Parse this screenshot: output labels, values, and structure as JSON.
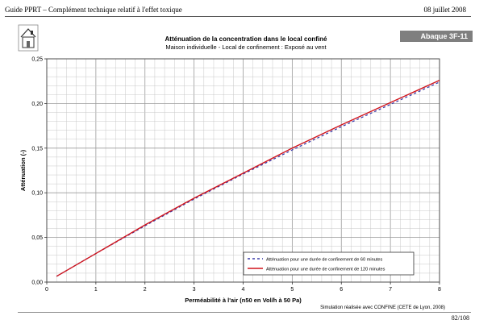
{
  "header": {
    "left": "Guide PPRT – Complément technique relatif à l'effet toxique",
    "right": "08 juillet 2008"
  },
  "badge": "Abaque  3F-11",
  "footer": {
    "credit": "Simulation réalisée avec CONFINE (CETE de Lyon, 2008)",
    "page": "82/108"
  },
  "icons": {
    "logo": "house-logo-icon"
  },
  "chart_data": {
    "type": "line",
    "title": "Atténuation de la concentration dans le local confiné",
    "subtitle": "Maison individuelle - Local de confinement : Exposé au vent",
    "xlabel": "Perméabilité à l'air (n50 en Vol/h à 50 Pa)",
    "ylabel": "Atténuation (-)",
    "xlim": [
      0,
      8
    ],
    "ylim": [
      0,
      0.25
    ],
    "xticks": [
      "0",
      "1",
      "2",
      "3",
      "4",
      "5",
      "6",
      "7",
      "8"
    ],
    "yticks": [
      "0,00",
      "0,05",
      "0,10",
      "0,15",
      "0,20",
      "0,25"
    ],
    "grid": true,
    "legend_position": "bottom-right",
    "series": [
      {
        "name": "Atténuation pour une durée de confinement de 60 minutes",
        "color": "#3a3aa8",
        "style": "dashed",
        "x": [
          0.2,
          1,
          2,
          3,
          4,
          5,
          6,
          7,
          8
        ],
        "y": [
          0.0065,
          0.032,
          0.063,
          0.093,
          0.121,
          0.148,
          0.174,
          0.199,
          0.224
        ]
      },
      {
        "name": "Atténuation pour une durée de confinement de 120 minutes",
        "color": "#d0141c",
        "style": "solid",
        "x": [
          0.2,
          1,
          2,
          3,
          4,
          5,
          6,
          7,
          8
        ],
        "y": [
          0.0065,
          0.032,
          0.064,
          0.094,
          0.122,
          0.15,
          0.176,
          0.201,
          0.226
        ]
      }
    ]
  }
}
